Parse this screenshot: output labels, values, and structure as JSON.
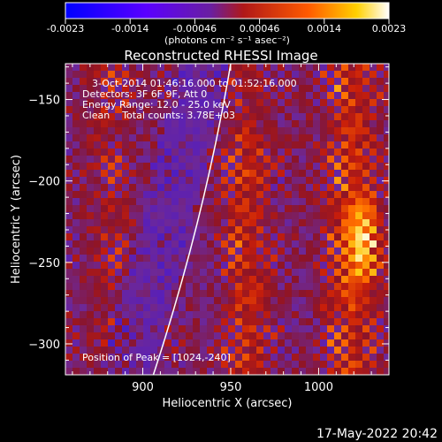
{
  "colorbar": {
    "ticks": [
      "-0.0023",
      "-0.0014",
      "-0.00046",
      "0.00046",
      "0.0014",
      "0.0023"
    ],
    "units": "(photons cm⁻² s⁻¹ asec⁻²)",
    "min": -0.0023,
    "max": 0.0023
  },
  "chart_data": {
    "type": "heatmap",
    "title": "Reconstructed RHESSI Image",
    "xlabel": "Heliocentric X (arcsec)",
    "ylabel": "Heliocentric Y (arcsec)",
    "xlim": [
      856,
      1040
    ],
    "ylim": [
      -319,
      -128
    ],
    "x_ticks": [
      900,
      950,
      1000
    ],
    "y_ticks": [
      -300,
      -250,
      -200,
      -150
    ],
    "limb_curve": [
      [
        906,
        -319
      ],
      [
        950,
        -128
      ]
    ],
    "annotations": [
      "3-Oct-2014 01:46:16.000 to 01:52:16.000",
      "Detectors: 3F 6F 9F, Att 0",
      "Energy Range: 12.0 - 25.0 keV",
      "Clean    Total counts: 3.78E+03"
    ],
    "peak_label": "Position of Peak = [1024,-240]",
    "peak": [
      1024,
      -240
    ]
  },
  "footer": {
    "date": "17-May-2022 20:42"
  }
}
